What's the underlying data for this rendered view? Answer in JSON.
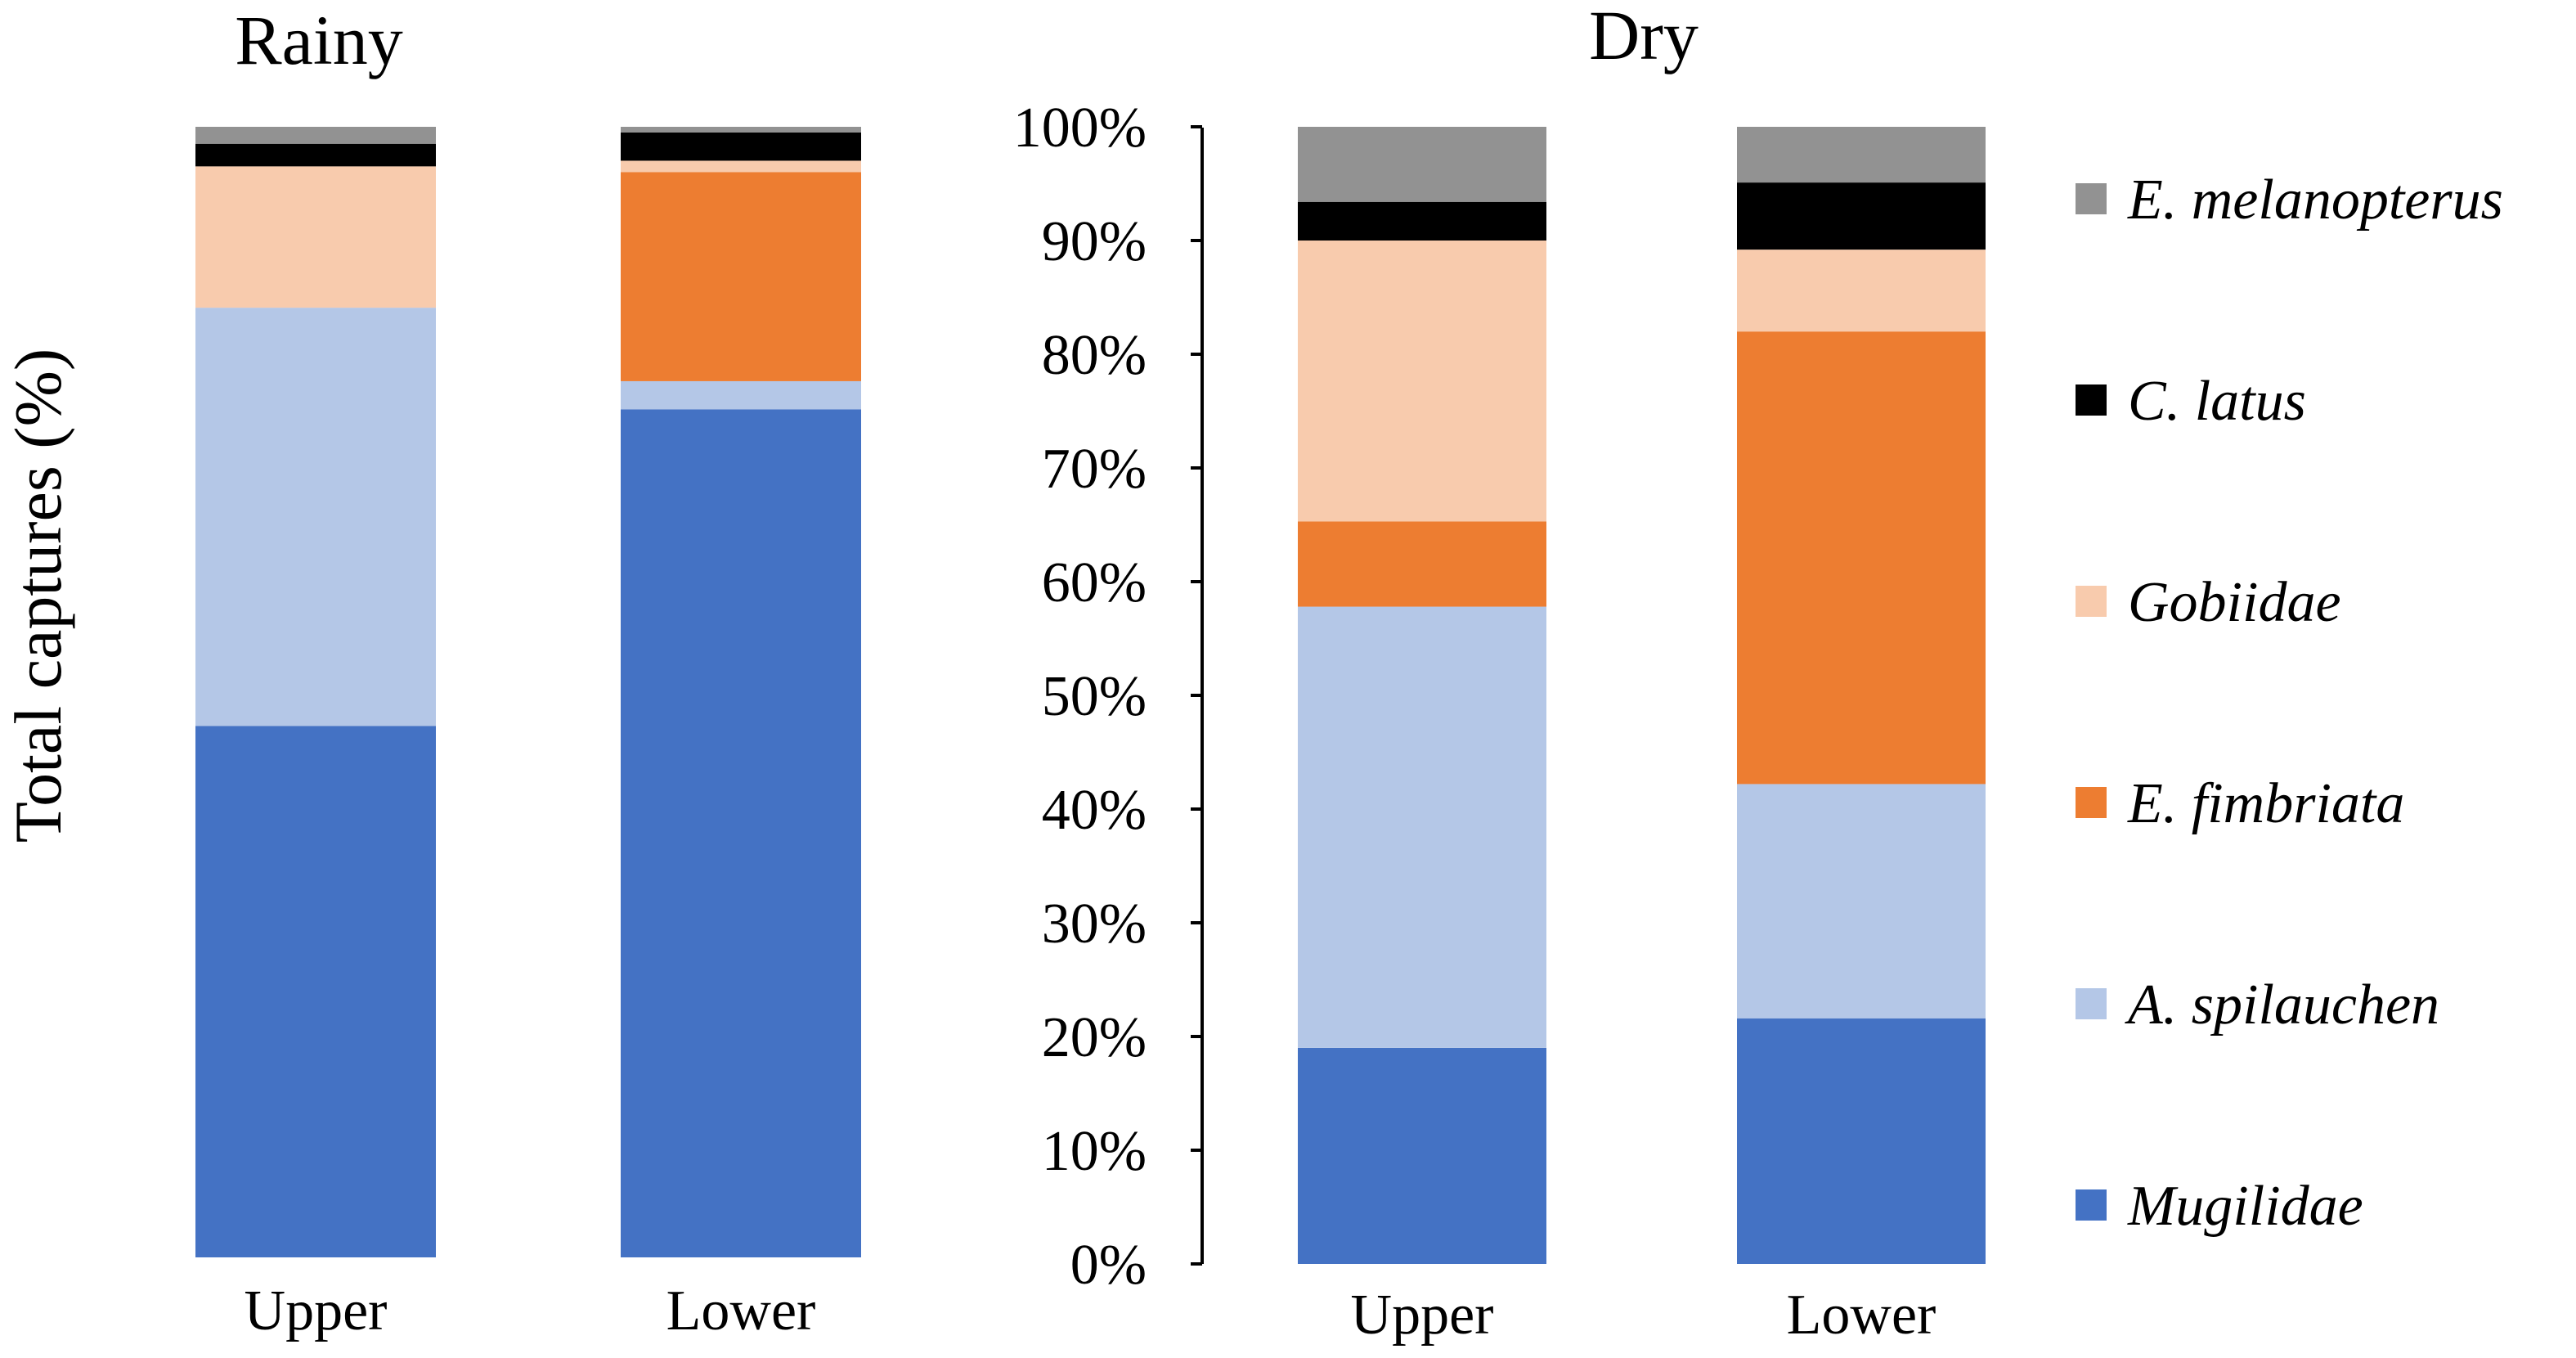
{
  "chart_data": [
    {
      "type": "bar",
      "stacked": true,
      "title": "Rainy",
      "ylabel": "Total captures (%)",
      "ylim": [
        0,
        100
      ],
      "categories": [
        "Upper",
        "Lower"
      ],
      "series": [
        {
          "name": "Mugilidae",
          "values": [
            47,
            75
          ],
          "color": "#4472C4"
        },
        {
          "name": "A. spilauchen",
          "values": [
            37,
            2.5
          ],
          "color": "#B4C7E7"
        },
        {
          "name": "E. fimbriata",
          "values": [
            0,
            18.5
          ],
          "color": "#ED7D31"
        },
        {
          "name": "Gobiidae",
          "values": [
            12.5,
            1
          ],
          "color": "#F8CBAD"
        },
        {
          "name": "C. latus",
          "values": [
            2,
            2.5
          ],
          "color": "#000000"
        },
        {
          "name": "E. melanopterus",
          "values": [
            1.5,
            0.5
          ],
          "color": "#929292"
        }
      ]
    },
    {
      "type": "bar",
      "stacked": true,
      "title": "Dry",
      "ylim": [
        0,
        100
      ],
      "yticks": [
        "0%",
        "10%",
        "20%",
        "30%",
        "40%",
        "50%",
        "60%",
        "70%",
        "80%",
        "90%",
        "100%"
      ],
      "categories": [
        "Upper",
        "Lower"
      ],
      "series": [
        {
          "name": "Mugilidae",
          "values": [
            19,
            21.6
          ],
          "color": "#4472C4"
        },
        {
          "name": "A. spilauchen",
          "values": [
            38.8,
            20.6
          ],
          "color": "#B4C7E7"
        },
        {
          "name": "E. fimbriata",
          "values": [
            7.5,
            39.8
          ],
          "color": "#ED7D31"
        },
        {
          "name": "Gobiidae",
          "values": [
            24.7,
            7.2
          ],
          "color": "#F8CBAD"
        },
        {
          "name": "C. latus",
          "values": [
            3.4,
            5.9
          ],
          "color": "#000000"
        },
        {
          "name": "E. melanopterus",
          "values": [
            6.6,
            4.9
          ],
          "color": "#929292"
        }
      ]
    }
  ],
  "legend": {
    "entries": [
      "E. melanopterus",
      "C. latus",
      "Gobiidae",
      "E. fimbriata",
      "A. spilauchen",
      "Mugilidae"
    ],
    "placement": "right"
  }
}
